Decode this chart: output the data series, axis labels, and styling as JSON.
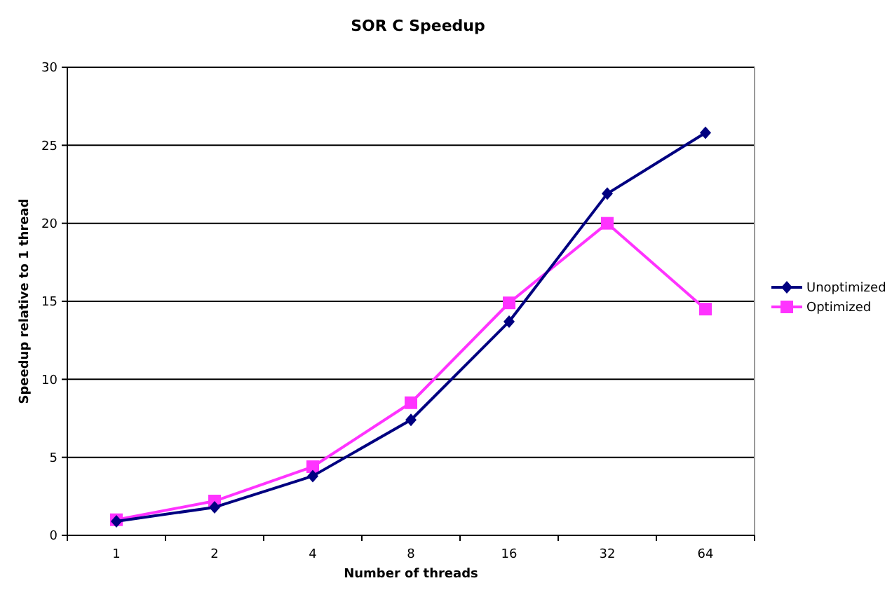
{
  "chart_data": {
    "type": "line",
    "title": "SOR C Speedup",
    "xlabel": "Number of threads",
    "ylabel": "Speedup relative to 1 thread",
    "categories": [
      "1",
      "2",
      "4",
      "8",
      "16",
      "32",
      "64"
    ],
    "series": [
      {
        "name": "Unoptimized",
        "color": "#000080",
        "marker": "diamond",
        "values": [
          0.9,
          1.8,
          3.8,
          7.4,
          13.7,
          21.9,
          25.8
        ]
      },
      {
        "name": "Optimized",
        "color": "#ff33ff",
        "marker": "square",
        "values": [
          1.0,
          2.2,
          4.4,
          8.5,
          14.9,
          20.0,
          14.5
        ]
      }
    ],
    "ylim": [
      0,
      30
    ],
    "yticks": [
      0,
      5,
      10,
      15,
      20,
      25,
      30
    ],
    "grid": "y",
    "legend": "right"
  }
}
